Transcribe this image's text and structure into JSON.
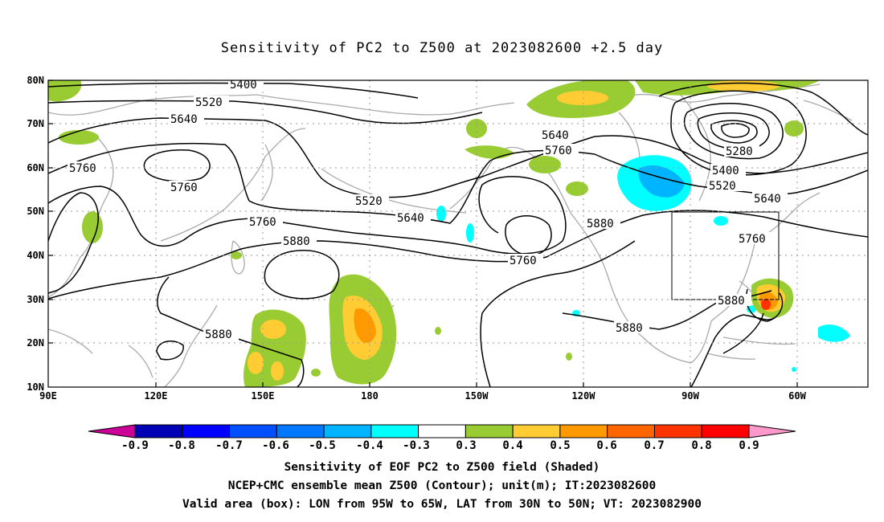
{
  "title": "Sensitivity of PC2 to Z500 at 2023082600 +2.5 day",
  "axes": {
    "lat_labels": [
      "80N",
      "70N",
      "60N",
      "50N",
      "40N",
      "30N",
      "20N",
      "10N"
    ],
    "lon_labels": [
      "90E",
      "120E",
      "150E",
      "180",
      "150W",
      "120W",
      "90W",
      "60W"
    ]
  },
  "contour_labels": [
    {
      "text": "5400",
      "name": "contour-label-5400-a"
    },
    {
      "text": "5520",
      "name": "contour-label-5520-a"
    },
    {
      "text": "5640",
      "name": "contour-label-5640-a"
    },
    {
      "text": "5760",
      "name": "contour-label-5760-a"
    },
    {
      "text": "5760",
      "name": "contour-label-5760-b"
    },
    {
      "text": "5520",
      "name": "contour-label-5520-b"
    },
    {
      "text": "5640",
      "name": "contour-label-5640-b"
    },
    {
      "text": "5760",
      "name": "contour-label-5760-c"
    },
    {
      "text": "5880",
      "name": "contour-label-5880-a"
    },
    {
      "text": "5640",
      "name": "contour-label-5640-c"
    },
    {
      "text": "5760",
      "name": "contour-label-5760-d"
    },
    {
      "text": "5760",
      "name": "contour-label-5760-e"
    },
    {
      "text": "5880",
      "name": "contour-label-5880-b"
    },
    {
      "text": "5880",
      "name": "contour-label-5880-c"
    },
    {
      "text": "5880",
      "name": "contour-label-5880-d"
    },
    {
      "text": "5880",
      "name": "contour-label-5880-e"
    },
    {
      "text": "5280",
      "name": "contour-label-5280"
    },
    {
      "text": "5400",
      "name": "contour-label-5400-b"
    },
    {
      "text": "5520",
      "name": "contour-label-5520-c"
    },
    {
      "text": "5640",
      "name": "contour-label-5640-d"
    },
    {
      "text": "5760",
      "name": "contour-label-5760-f"
    }
  ],
  "colorbar": {
    "labels": [
      "-0.9",
      "-0.8",
      "-0.7",
      "-0.6",
      "-0.5",
      "-0.4",
      "-0.3",
      "0.3",
      "0.4",
      "0.5",
      "0.6",
      "0.7",
      "0.8",
      "0.9"
    ],
    "left_arrow_color": "#cc0099",
    "right_arrow_color": "#ff99cc",
    "colors": [
      "#0000b4",
      "#0000ff",
      "#0050ff",
      "#0078ff",
      "#00b4ff",
      "#00ffff",
      "#ffffff",
      "#99cc33",
      "#ffcc33",
      "#ff9900",
      "#ff6600",
      "#ff3300",
      "#ff0000"
    ]
  },
  "caption": {
    "line1": "Sensitivity of EOF PC2 to Z500 field (Shaded)",
    "line2": "NCEP+CMC ensemble mean Z500 (Contour); unit(m); IT:2023082600",
    "line3": "Valid area (box): LON from 95W to 65W, LAT from 30N to 50N; VT: 2023082900"
  }
}
